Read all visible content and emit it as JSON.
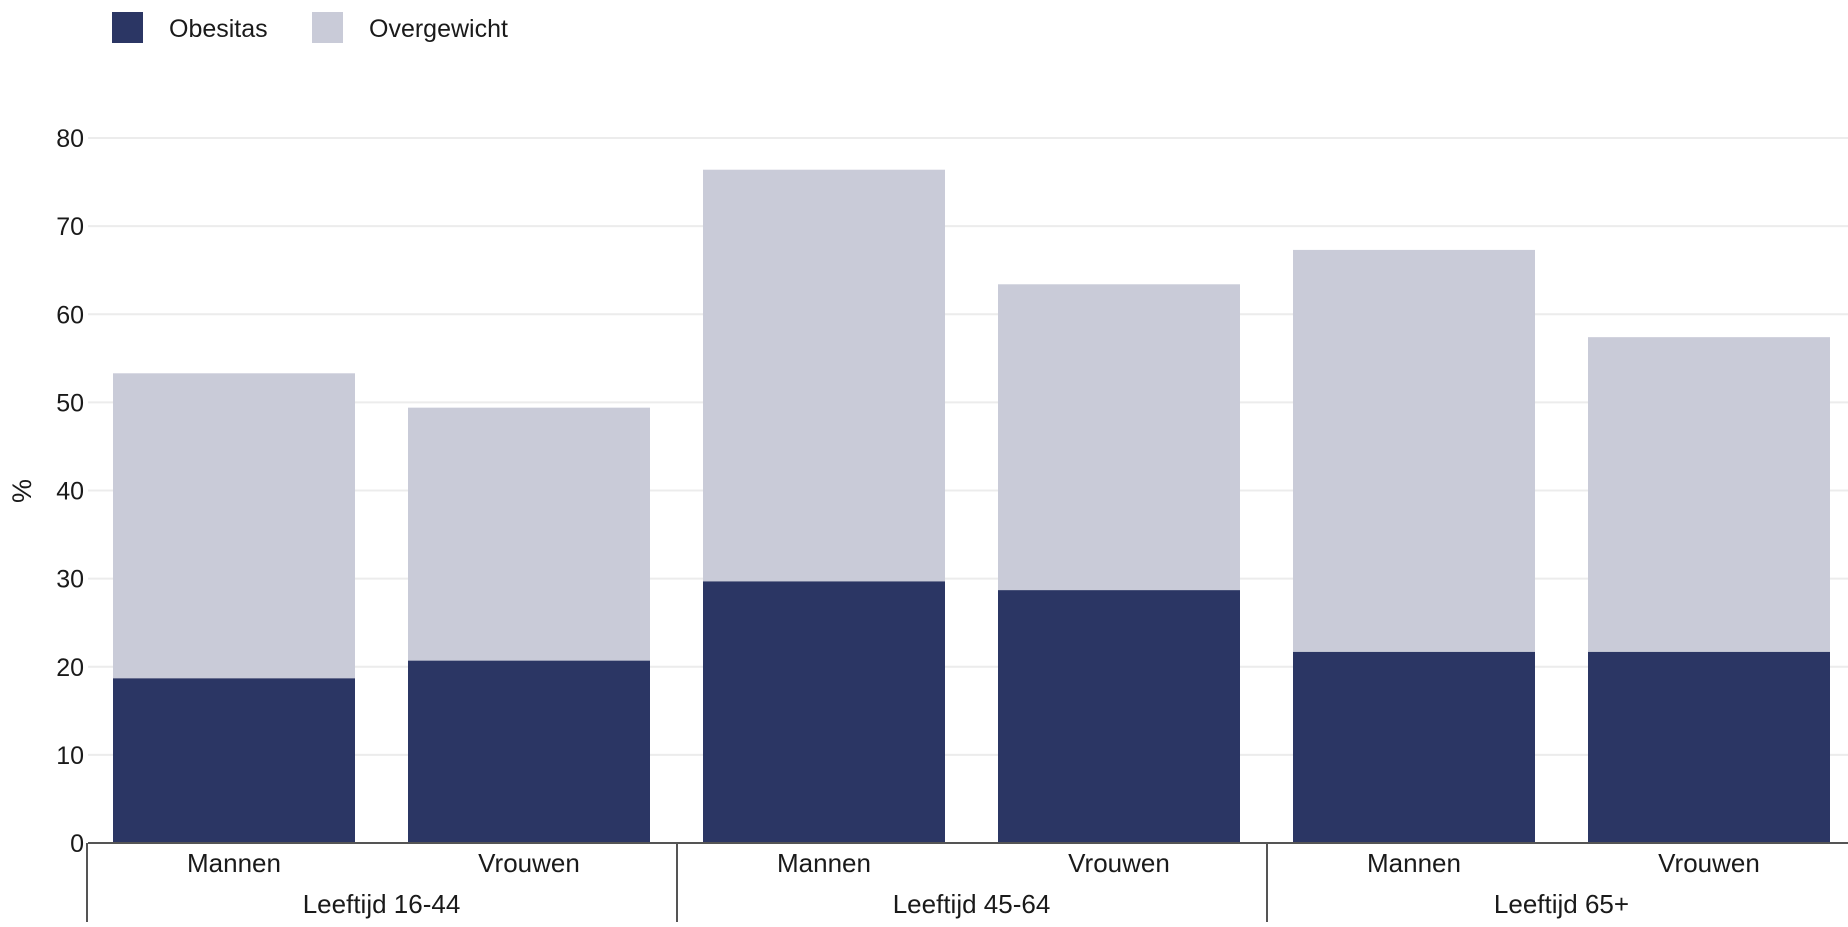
{
  "chart_data": {
    "type": "bar",
    "stacked": true,
    "groups": [
      {
        "label": "Leeftijd 16-44",
        "categories": [
          "Mannen",
          "Vrouwen"
        ]
      },
      {
        "label": "Leeftijd 45-64",
        "categories": [
          "Mannen",
          "Vrouwen"
        ]
      },
      {
        "label": "Leeftijd 65+",
        "categories": [
          "Mannen",
          "Vrouwen"
        ]
      }
    ],
    "categories": [
      "Mannen",
      "Vrouwen",
      "Mannen",
      "Vrouwen",
      "Mannen",
      "Vrouwen"
    ],
    "series": [
      {
        "name": "Obesitas",
        "color": "#2b3664",
        "values": [
          18.7,
          20.7,
          29.7,
          28.7,
          21.7,
          21.7
        ]
      },
      {
        "name": "Overgewicht",
        "color": "#c9cbd8",
        "values": [
          34.6,
          28.7,
          46.7,
          34.7,
          45.6,
          35.7
        ]
      }
    ],
    "ylabel": "%",
    "xlabel": "",
    "title": "",
    "ylim": [
      0,
      80
    ],
    "yticks": [
      0,
      10,
      20,
      30,
      40,
      50,
      60,
      70,
      80
    ],
    "grid": true,
    "legend_position": "top-left"
  }
}
